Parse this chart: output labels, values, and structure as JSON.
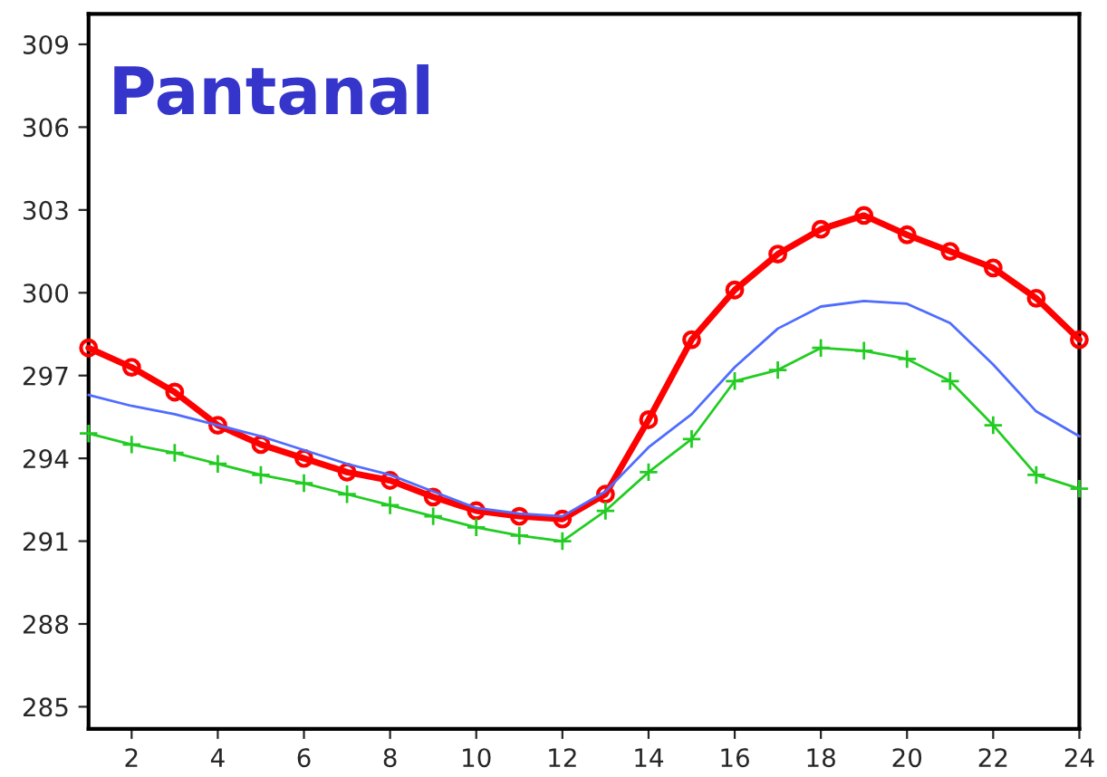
{
  "chart_data": {
    "type": "line",
    "annotations": [
      "Pantanal"
    ],
    "x": [
      1,
      2,
      3,
      4,
      5,
      6,
      7,
      8,
      9,
      10,
      11,
      12,
      13,
      14,
      15,
      16,
      17,
      18,
      19,
      20,
      21,
      22,
      23,
      24
    ],
    "series": [
      {
        "color": "#ff0000",
        "marker": "circle",
        "values": [
          298.0,
          297.3,
          296.4,
          295.2,
          294.5,
          294.0,
          293.5,
          293.2,
          292.6,
          292.1,
          291.9,
          291.8,
          292.7,
          295.4,
          298.3,
          300.1,
          301.4,
          302.3,
          302.8,
          302.1,
          301.5,
          300.9,
          299.8,
          298.3
        ]
      },
      {
        "color": "#4f6cff",
        "marker": "none",
        "values": [
          296.3,
          295.9,
          295.6,
          295.2,
          294.8,
          294.3,
          293.8,
          293.4,
          292.8,
          292.2,
          292.0,
          291.9,
          292.8,
          294.4,
          295.6,
          297.3,
          298.7,
          299.5,
          299.7,
          299.6,
          298.9,
          297.4,
          295.7,
          294.8
        ]
      },
      {
        "color": "#22cc22",
        "marker": "cross",
        "values": [
          294.9,
          294.5,
          294.2,
          293.8,
          293.4,
          293.1,
          292.7,
          292.3,
          291.9,
          291.5,
          291.2,
          291.0,
          292.1,
          293.5,
          294.7,
          296.8,
          297.2,
          298.0,
          297.9,
          297.6,
          296.8,
          295.2,
          293.4,
          292.9
        ]
      }
    ],
    "xlim": [
      1,
      24
    ],
    "xticks": [
      2,
      4,
      6,
      8,
      10,
      12,
      14,
      16,
      18,
      20,
      22,
      24
    ],
    "ylim": [
      284.2,
      310.1
    ],
    "yticks": [
      285,
      288,
      291,
      294,
      297,
      300,
      303,
      306,
      309
    ],
    "grid": false,
    "line_style": "solid"
  }
}
